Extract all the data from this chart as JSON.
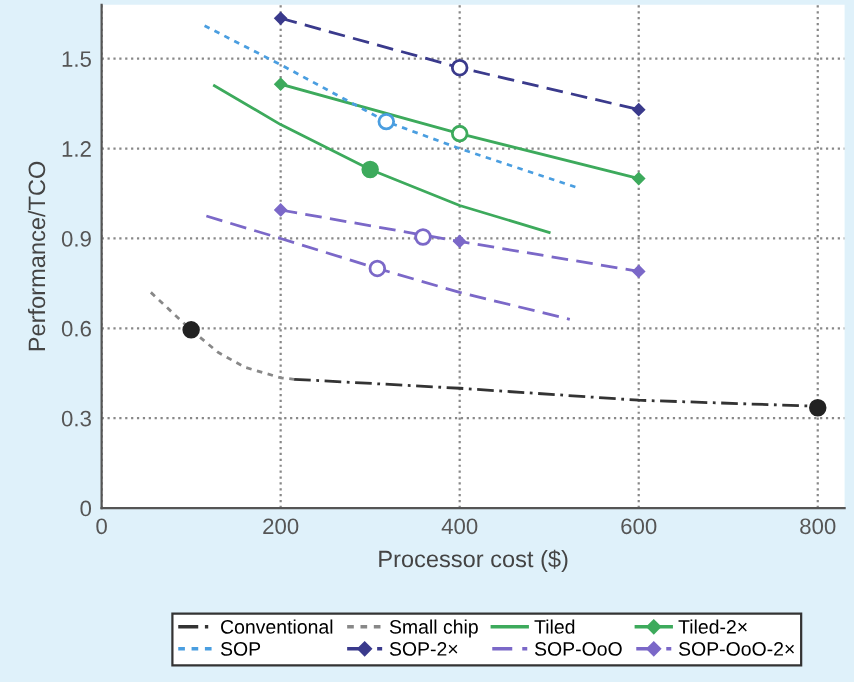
{
  "chart_data": {
    "type": "line",
    "xlabel": "Processor cost ($)",
    "ylabel": "Performance/TCO",
    "xlim": [
      0,
      830
    ],
    "xticks": [
      0,
      200,
      400,
      600,
      800
    ],
    "ylim": [
      0,
      1.68
    ],
    "yticks": [
      0,
      0.3,
      0.6,
      0.9,
      1.2,
      1.5
    ],
    "grid": true,
    "legend": "bottom",
    "series": [
      {
        "name": "Conventional",
        "color": "#333333",
        "line_style": "dashdot",
        "x": [
          215,
          400,
          600,
          800
        ],
        "values": [
          0.43,
          0.4,
          0.36,
          0.34
        ]
      },
      {
        "name": "Small chip",
        "color": "#888888",
        "line_style": "dotted",
        "x": [
          55,
          80,
          100,
          130,
          160,
          200,
          215
        ],
        "values": [
          0.72,
          0.65,
          0.595,
          0.52,
          0.47,
          0.435,
          0.43
        ]
      },
      {
        "name": "Tiled",
        "color": "#3daa5c",
        "line_style": "solid",
        "x": [
          126,
          200,
          300,
          400,
          500
        ],
        "values": [
          1.41,
          1.28,
          1.13,
          1.01,
          0.92
        ]
      },
      {
        "name": "Tiled-2×",
        "color": "#3daa5c",
        "line_style": "solid",
        "marker": "diamond",
        "x": [
          200,
          400,
          600
        ],
        "values": [
          1.415,
          1.25,
          1.1
        ]
      },
      {
        "name": "SOP",
        "color": "#4a9ee0",
        "line_style": "dotted",
        "x": [
          115,
          200,
          318,
          400,
          531
        ],
        "values": [
          1.61,
          1.48,
          1.29,
          1.2,
          1.07
        ]
      },
      {
        "name": "SOP-2×",
        "color": "#3a3a8c",
        "line_style": "dashed",
        "marker": "diamond",
        "x": [
          200,
          400,
          600
        ],
        "values": [
          1.635,
          1.47,
          1.33
        ]
      },
      {
        "name": "SOP-OoO",
        "color": "#7b68c8",
        "line_style": "dashed",
        "x": [
          117,
          200,
          308,
          400,
          523
        ],
        "values": [
          0.975,
          0.9,
          0.8,
          0.72,
          0.63
        ]
      },
      {
        "name": "SOP-OoO-2×",
        "color": "#7b68c8",
        "line_style": "dashed",
        "marker": "diamond",
        "x": [
          200,
          400,
          600
        ],
        "values": [
          0.995,
          0.89,
          0.79
        ]
      },
      {
        "type": "scatter",
        "color": "#222222",
        "marker": "circle",
        "x": [
          100,
          800
        ],
        "values": [
          0.595,
          0.335
        ]
      },
      {
        "type": "scatter",
        "color": "#3daa5c",
        "marker": "circle",
        "x": [
          300
        ],
        "values": [
          1.13
        ]
      },
      {
        "type": "scatter",
        "color": "#3daa5c",
        "colors": [
          "#ffffff"
        ],
        "marker": "circle",
        "x": [
          400
        ],
        "values": [
          1.25
        ]
      },
      {
        "type": "scatter",
        "color": "#3a3a8c",
        "colors": [
          "#ffffff"
        ],
        "marker": "circle",
        "x": [
          400
        ],
        "values": [
          1.47
        ]
      },
      {
        "type": "scatter",
        "color": "#4a9ee0",
        "colors": [
          "#ffffff"
        ],
        "marker": "circle",
        "x": [
          318
        ],
        "values": [
          1.29
        ]
      },
      {
        "type": "scatter",
        "color": "#7b68c8",
        "colors": [
          "#ffffff",
          "#ffffff"
        ],
        "marker": "circle",
        "x": [
          359,
          308
        ],
        "values": [
          0.905,
          0.8
        ]
      }
    ]
  }
}
